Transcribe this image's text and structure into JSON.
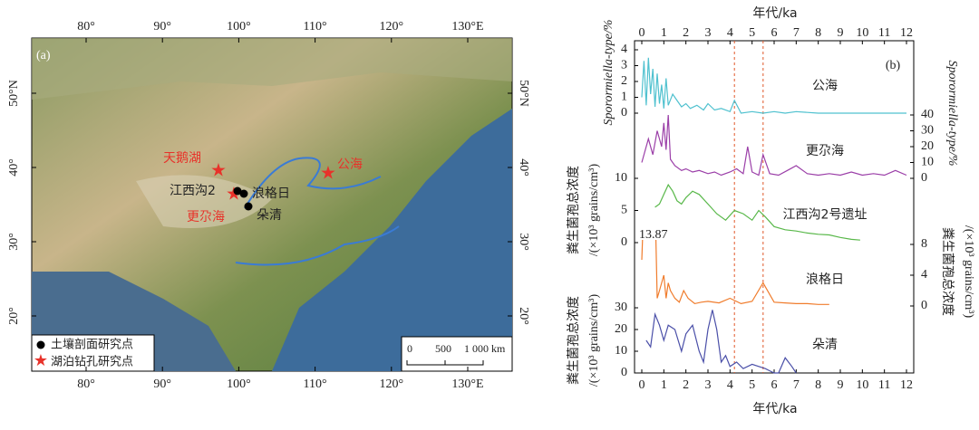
{
  "map": {
    "panel_label": "(a)",
    "lon_ticks": [
      {
        "value": 80,
        "label": "80°"
      },
      {
        "value": 90,
        "label": "90°"
      },
      {
        "value": 100,
        "label": "100°"
      },
      {
        "value": 110,
        "label": "110°"
      },
      {
        "value": 120,
        "label": "120°"
      },
      {
        "value": 130,
        "label": "130°E"
      }
    ],
    "lat_ticks": [
      {
        "value": 50,
        "label": "50°N"
      },
      {
        "value": 40,
        "label": "40°"
      },
      {
        "value": 30,
        "label": "30°"
      },
      {
        "value": 20,
        "label": "20°"
      }
    ],
    "places": {
      "tianehu": "天鹅湖",
      "gonghai": "公海",
      "jiangxigou": "江西沟2",
      "langgeri": "浪格日",
      "duoqing": "朵清",
      "genggahai": "更尕海"
    },
    "legend": [
      "土壤剖面研究点",
      "湖泊钻孔研究点"
    ],
    "scale": [
      "0",
      "500",
      "1 000 km"
    ]
  },
  "panel_label": "(b)",
  "chart_data": [
    {
      "type": "line",
      "name": "公海",
      "ylabel": "Sporormiella-type/%",
      "axis": "left",
      "color": "#4fc1cf",
      "xlim": [
        0,
        12
      ],
      "xticks": [
        0,
        1,
        2,
        3,
        4,
        5,
        6,
        7,
        8,
        9,
        10,
        11,
        12
      ],
      "xlabel": "年代/ka",
      "reference_lines": [
        4.2,
        5.5
      ],
      "x": [
        0,
        0.1,
        0.2,
        0.3,
        0.4,
        0.5,
        0.6,
        0.7,
        0.8,
        0.9,
        1.0,
        1.1,
        1.2,
        1.4,
        1.6,
        1.8,
        2.0,
        2.2,
        2.5,
        2.8,
        3.0,
        3.3,
        3.6,
        4.0,
        4.2,
        4.5,
        5.0,
        5.5,
        6.0,
        6.5,
        7,
        8,
        9,
        10,
        11,
        12
      ],
      "values": [
        1,
        3.3,
        0.5,
        3.5,
        1.2,
        2.8,
        0.4,
        2.5,
        0.6,
        1.8,
        0.3,
        2.2,
        0.5,
        1.2,
        0.8,
        0.4,
        0.6,
        0.3,
        0.5,
        0.2,
        0.6,
        0.2,
        0.3,
        0.1,
        0.8,
        0,
        0.1,
        0,
        0.1,
        0,
        0.1,
        0,
        0,
        0,
        0,
        0
      ],
      "ylim": [
        0,
        4
      ],
      "yticks": [
        0,
        1,
        2,
        3,
        4
      ]
    },
    {
      "type": "line",
      "name": "更尕海",
      "ylabel": "Sporormiella-type/%",
      "axis": "y2",
      "color": "#9b3fa8",
      "xlim": [
        0,
        12
      ],
      "x": [
        0,
        0.3,
        0.5,
        0.7,
        0.9,
        1.0,
        1.1,
        1.2,
        1.3,
        1.5,
        1.8,
        2.0,
        2.3,
        2.6,
        3.0,
        3.3,
        3.6,
        4.0,
        4.3,
        4.6,
        4.8,
        5.0,
        5.3,
        5.5,
        5.8,
        6.2,
        6.6,
        7,
        7.5,
        8,
        8.5,
        9,
        9.5,
        10,
        10.5,
        11,
        11.5,
        12
      ],
      "values": [
        10,
        25,
        15,
        30,
        20,
        35,
        18,
        40,
        12,
        8,
        5,
        6,
        4,
        5,
        3,
        4,
        2,
        4,
        6,
        3,
        20,
        4,
        2,
        15,
        3,
        2,
        5,
        8,
        3,
        2,
        3,
        2,
        4,
        2,
        3,
        2,
        5,
        2
      ],
      "ylim": [
        0,
        40
      ],
      "yticks": [
        0,
        10,
        20,
        30,
        40
      ]
    },
    {
      "type": "line",
      "name": "江西沟2号遗址",
      "ylabel": [
        "粪生菌孢总浓度",
        "/(×10³ grains/cm³)"
      ],
      "axis": "left",
      "color": "#59b84a",
      "xlim": [
        0,
        12
      ],
      "x": [
        0.6,
        0.8,
        1.0,
        1.2,
        1.4,
        1.6,
        1.8,
        2.0,
        2.3,
        2.6,
        3.0,
        3.4,
        3.8,
        4.2,
        4.6,
        5.0,
        5.3,
        5.6,
        6.0,
        6.5,
        7,
        7.5,
        8,
        8.5,
        9,
        9.5,
        9.9
      ],
      "values": [
        5.5,
        6,
        7.5,
        9,
        8,
        6.5,
        6,
        7,
        8,
        7.5,
        6,
        4.5,
        3.5,
        5,
        4.5,
        3.5,
        5,
        4,
        2.5,
        2,
        1.8,
        1.5,
        1.3,
        1.2,
        0.8,
        0.5,
        0.4
      ],
      "ylim": [
        0,
        10
      ],
      "yticks": [
        0,
        5,
        10
      ]
    },
    {
      "type": "line",
      "name": "浪格日",
      "ylabel": [
        "粪生菌孢总浓度",
        "/(×10³ grains/cm³)"
      ],
      "axis": "y2",
      "color": "#f07c2c",
      "xlim": [
        0,
        12
      ],
      "annotation": "13.87",
      "x": [
        0,
        0.1,
        0.2,
        0.6,
        0.7,
        0.8,
        1.0,
        1.1,
        1.2,
        1.3,
        1.5,
        1.7,
        1.9,
        2.1,
        2.4,
        2.7,
        3.0,
        3.5,
        4.0,
        4.5,
        5.0,
        5.5,
        6,
        6.5,
        7,
        7.5,
        8,
        8.5
      ],
      "values": [
        6,
        13.87,
        13.87,
        13.87,
        1,
        2,
        4,
        1,
        3,
        2,
        1,
        0.5,
        2,
        1,
        0.3,
        0.5,
        0.6,
        0.4,
        1,
        0.3,
        0.6,
        3,
        0.5,
        0.4,
        0.3,
        0.3,
        0.2,
        0.2
      ],
      "ylim": [
        0,
        8
      ],
      "yticks": [
        0,
        4,
        8
      ]
    },
    {
      "type": "line",
      "name": "朵清",
      "ylabel": [
        "粪生菌孢总浓度",
        "/(×10³ grains/cm³)"
      ],
      "axis": "left",
      "color": "#4a4fa8",
      "xlim": [
        0,
        12
      ],
      "xticks": [
        0,
        1,
        2,
        3,
        4,
        5,
        6,
        7,
        8,
        9,
        10,
        11,
        12
      ],
      "xlabel": "年代/ka",
      "x": [
        0.2,
        0.4,
        0.6,
        0.8,
        1.0,
        1.2,
        1.5,
        1.8,
        2.0,
        2.3,
        2.6,
        2.8,
        3.0,
        3.2,
        3.4,
        3.6,
        3.8,
        4.0,
        4.3,
        4.6,
        5.0,
        5.3,
        5.6,
        5.8,
        6.0,
        6.2,
        6.5,
        6.8,
        7.0
      ],
      "values": [
        15,
        12,
        27,
        22,
        15,
        22,
        20,
        10,
        18,
        22,
        10,
        5,
        20,
        29,
        20,
        5,
        8,
        3,
        5,
        2,
        4,
        3,
        2,
        1,
        0,
        0,
        7,
        3,
        0
      ],
      "ylim": [
        0,
        30
      ],
      "yticks": [
        0,
        10,
        20,
        30
      ]
    }
  ]
}
